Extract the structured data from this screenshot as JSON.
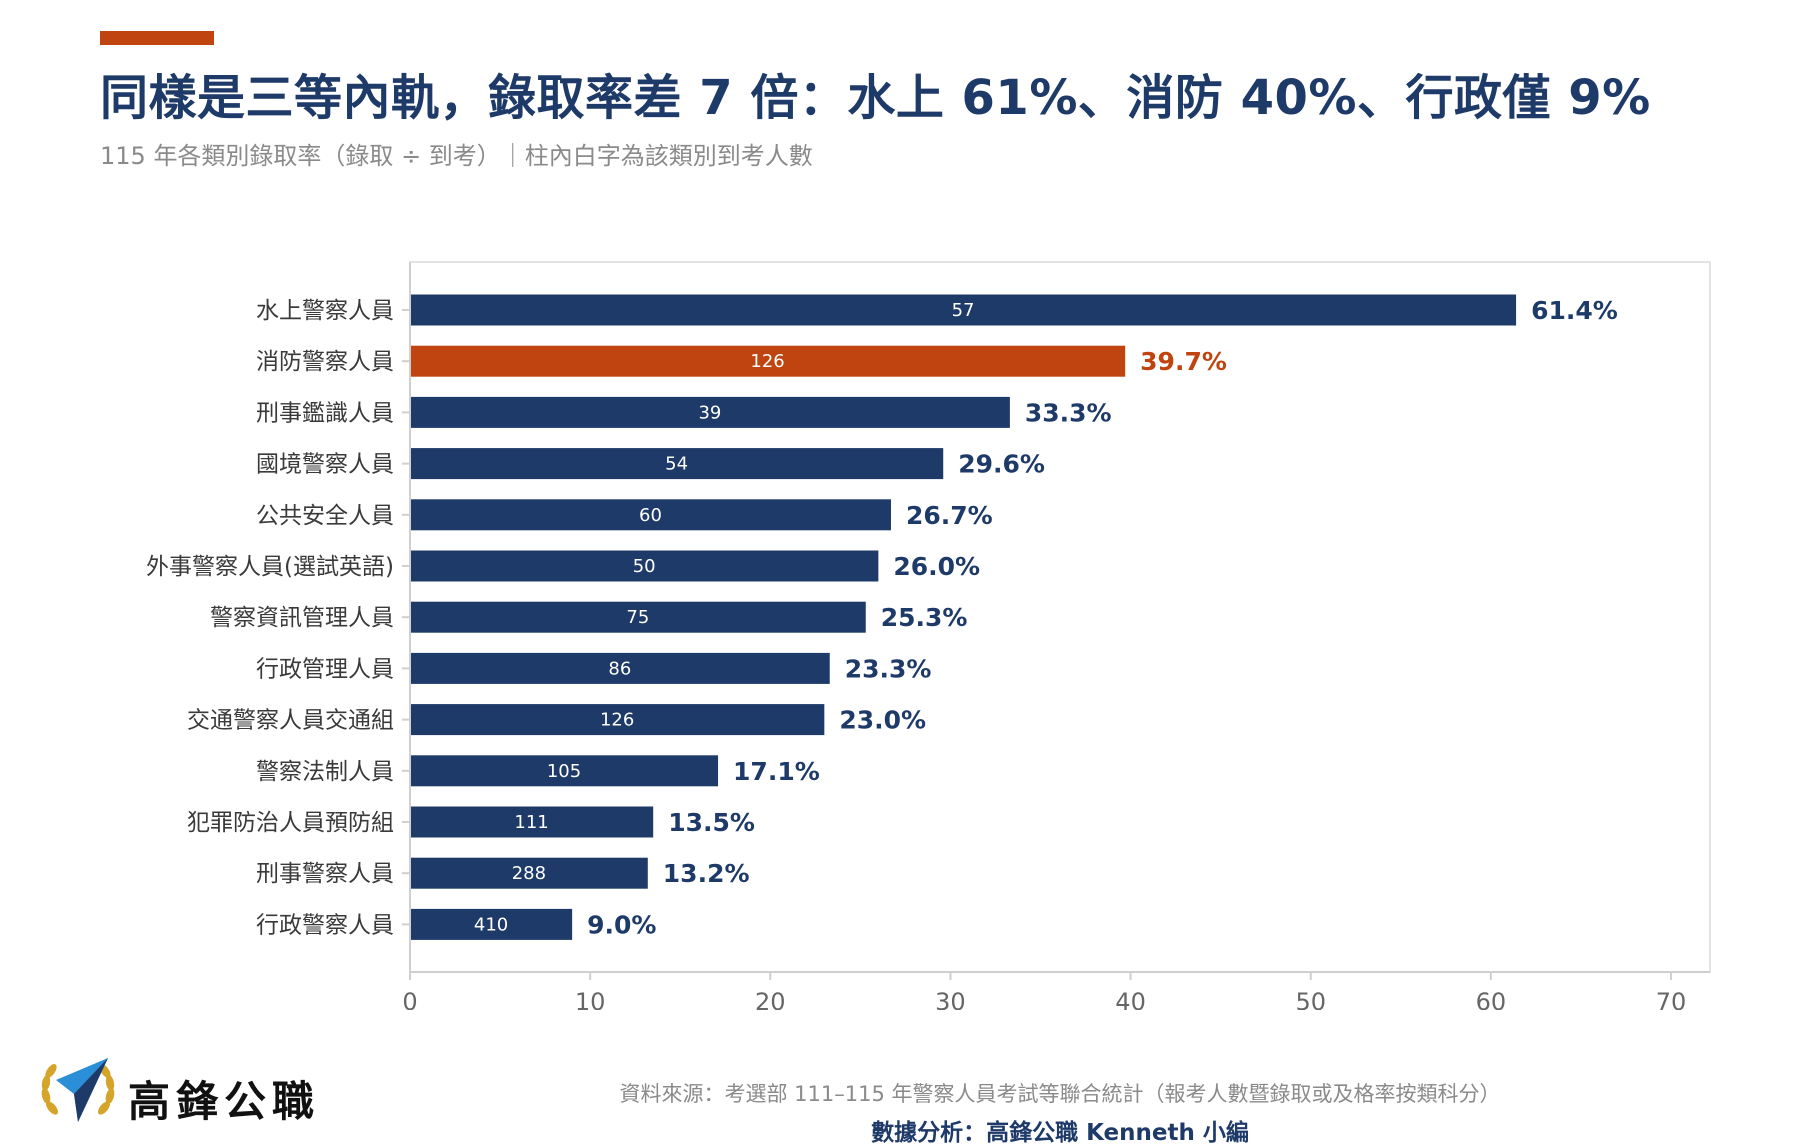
{
  "header": {
    "title": "同樣是三等內軌，錄取率差 7 倍：水上 61%、消防 40%、行政僅 9%",
    "subtitle": "115 年各類別錄取率（錄取 ÷ 到考）｜柱內白字為該類別到考人數"
  },
  "colors": {
    "accent": "#c0440f",
    "navy": "#1e3a68",
    "grid": "#e3e3e3",
    "axis": "#cfcfcf",
    "tick_text": "#666666"
  },
  "chart_data": {
    "type": "bar",
    "orientation": "horizontal",
    "categories": [
      "水上警察人員",
      "消防警察人員",
      "刑事鑑識人員",
      "國境警察人員",
      "公共安全人員",
      "外事警察人員(選試英語)",
      "警察資訊管理人員",
      "行政管理人員",
      "交通警察人員交通組",
      "警察法制人員",
      "犯罪防治人員預防組",
      "刑事警察人員",
      "行政警察人員"
    ],
    "values": [
      61.4,
      39.7,
      33.3,
      29.6,
      26.7,
      26.0,
      25.3,
      23.3,
      23.0,
      17.1,
      13.5,
      13.2,
      9.0
    ],
    "value_labels": [
      "61.4%",
      "39.7%",
      "33.3%",
      "29.6%",
      "26.7%",
      "26.0%",
      "25.3%",
      "23.3%",
      "23.0%",
      "17.1%",
      "13.5%",
      "13.2%",
      "9.0%"
    ],
    "in_bar_labels": [
      "57",
      "126",
      "39",
      "54",
      "60",
      "50",
      "75",
      "86",
      "126",
      "105",
      "111",
      "288",
      "410"
    ],
    "highlight_index": 1,
    "xlim": [
      0,
      70
    ],
    "xticks": [
      0,
      10,
      20,
      30,
      40,
      50,
      60,
      70
    ],
    "grid": false
  },
  "footer": {
    "logo_icon": "paper-plane-laurel-icon",
    "brand": "高鋒公職",
    "source": "資料來源：考選部 111–115 年警察人員考試等聯合統計（報考人數暨錄取或及格率按類科分）",
    "analysis": "數據分析：高鋒公職 Kenneth 小編"
  }
}
